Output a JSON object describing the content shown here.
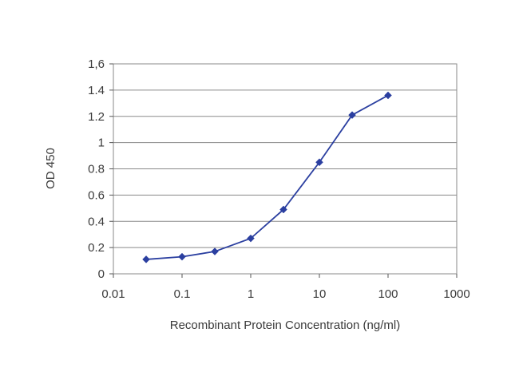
{
  "chart_data": {
    "type": "line",
    "title": "",
    "xlabel": "Recombinant Protein Concentration (ng/ml)",
    "ylabel": "OD 450",
    "xscale": "log",
    "xlim": [
      0.01,
      1000
    ],
    "ylim": [
      0,
      1.6
    ],
    "grid": "horizontal",
    "legend": "none",
    "xticks": [
      "0.01",
      "0.1",
      "1",
      "10",
      "100",
      "1000"
    ],
    "yticks": [
      "0",
      "0.2",
      "0.4",
      "0.6",
      "0.8",
      "1",
      "1.2",
      "1.4",
      "1,6"
    ],
    "series": [
      {
        "color": "#2b3fa0",
        "marker": "diamond",
        "x": [
          0.03,
          0.1,
          0.3,
          1,
          3,
          10,
          30,
          100
        ],
        "y": [
          0.11,
          0.13,
          0.17,
          0.27,
          0.49,
          0.85,
          1.21,
          1.36
        ]
      }
    ]
  }
}
